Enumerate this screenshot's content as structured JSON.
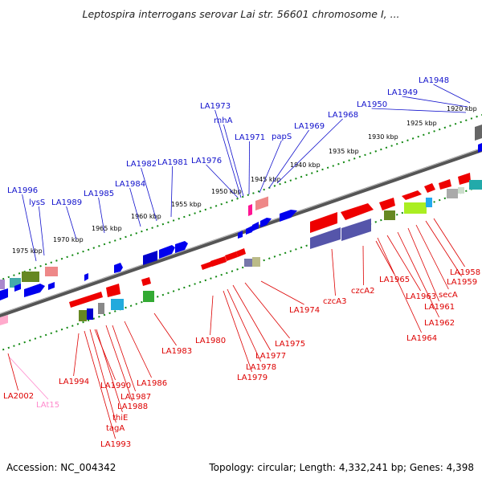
{
  "title": "Leptospira interrogans serovar Lai str. 56601 chromosome I, ...",
  "footer": {
    "accession": "Accession: NC_004342",
    "info": "Topology: circular; Length: 4,332,241 bp; Genes: 4,398"
  },
  "colors": {
    "forward_label": "#1010cc",
    "reverse_label": "#dd0000",
    "rna_label": "#ff88cc",
    "backbone": "#777777",
    "ticks": "#118811"
  },
  "scale_ticks": [
    "1920 kbp",
    "1925 kbp",
    "1930 kbp",
    "1935 kbp",
    "1940 kbp",
    "1945 kbp",
    "1950 kbp",
    "1955 kbp",
    "1960 kbp",
    "1965 kbp",
    "1970 kbp",
    "1975 kbp"
  ],
  "forward_labels": [
    "LA1948",
    "LA1949",
    "LA1950",
    "LA1968",
    "LA1969",
    "papS",
    "LA1971",
    "rnhA",
    "LA1973",
    "LA1976",
    "LA1981",
    "LA1982",
    "LA1984",
    "LA1985",
    "LA1989",
    "lysS",
    "LA1996"
  ],
  "reverse_labels": [
    "LA1958",
    "LA1959",
    "secA",
    "LA1961",
    "LA1962",
    "LA1963",
    "LA1964",
    "LA1965",
    "czcA2",
    "czcA3",
    "LA1974",
    "LA1975",
    "LA1977",
    "LA1978",
    "LA1979",
    "LA1980",
    "LA1983",
    "LA1986",
    "LA1987",
    "LA1988",
    "LA1990",
    "thiE",
    "tagA",
    "LA1993",
    "LA1994",
    "LA2002"
  ],
  "rna_labels": [
    "LAt15"
  ]
}
